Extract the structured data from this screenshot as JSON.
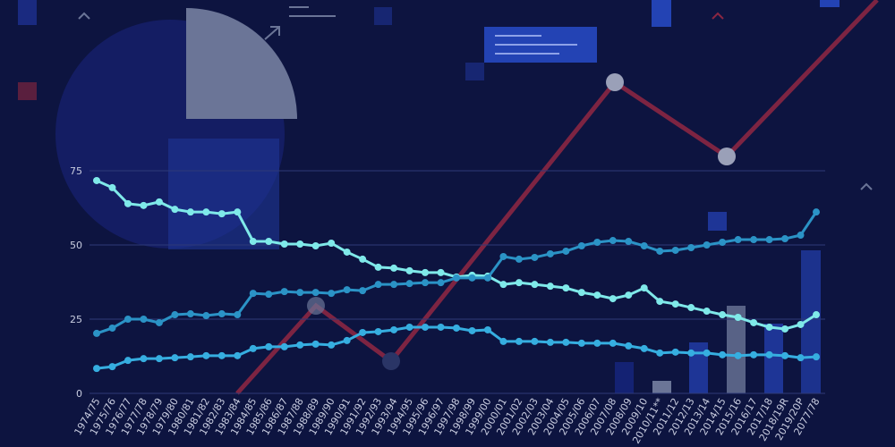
{
  "chart_data": {
    "type": "line",
    "categories": [
      "1974/75",
      "1975/76",
      "1976/77",
      "1977/78",
      "1978/79",
      "1979/80",
      "1980/81",
      "1981/82",
      "1982/83",
      "1983/84",
      "1984/85",
      "1985/86",
      "1986/87",
      "1987/88",
      "1988/89",
      "1989/90",
      "1990/91",
      "1991/92",
      "1992/93",
      "1993/94",
      "1994/95",
      "1995/96",
      "1996/97",
      "1997/98",
      "1998/99",
      "1999/00",
      "2000/01",
      "2001/02",
      "2002/03",
      "2003/04",
      "2004/05",
      "2005/06",
      "2006/07",
      "2007/08",
      "2008/09",
      "2009/10",
      "2010/11**",
      "2011/12",
      "2012/13",
      "2013/14",
      "2014/15",
      "2015/16",
      "2016/17",
      "2017/18",
      "2018/19R",
      "2019/20P",
      "2077/78"
    ],
    "series": [
      {
        "color": "#7fe9e9",
        "values": [
          71.7,
          69.3,
          63.9,
          63.3,
          64.5,
          62,
          61.1,
          61.1,
          60.5,
          61.1,
          51.2,
          51.2,
          50.3,
          50.3,
          49.7,
          50.6,
          47.6,
          45.2,
          42.5,
          42.2,
          41.3,
          40.7,
          40.7,
          39.2,
          39.8,
          39.5,
          36.7,
          37.3,
          36.7,
          36.1,
          35.5,
          34,
          33.1,
          31.9,
          33.1,
          35.5,
          31,
          30.1,
          28.9,
          27.7,
          26.5,
          25.6,
          23.8,
          22.3,
          21.7,
          23.2,
          26.5
        ]
      },
      {
        "color": "#2b93c6",
        "values": [
          20.2,
          22,
          25,
          25,
          23.8,
          26.5,
          26.8,
          26.2,
          26.8,
          26.5,
          33.7,
          33.4,
          34.3,
          34,
          34,
          33.7,
          34.9,
          34.6,
          36.7,
          36.7,
          37,
          37.3,
          37.3,
          38.9,
          38.9,
          38.9,
          46.1,
          45.2,
          45.8,
          47,
          47.9,
          49.7,
          50.9,
          51.5,
          51.2,
          49.7,
          47.9,
          48.2,
          49.1,
          50,
          50.9,
          51.8,
          51.8,
          51.8,
          52.1,
          53.3,
          61.1
        ]
      },
      {
        "color": "#36aee0",
        "values": [
          8.4,
          9,
          11.1,
          11.7,
          11.7,
          12,
          12.3,
          12.7,
          12.7,
          12.7,
          15.1,
          15.7,
          15.7,
          16.3,
          16.6,
          16.3,
          17.8,
          20.5,
          20.8,
          21.4,
          22.3,
          22.3,
          22.3,
          22,
          21.1,
          21.4,
          17.5,
          17.5,
          17.5,
          17.2,
          17.2,
          16.9,
          16.9,
          16.9,
          16,
          15.1,
          13.6,
          13.9,
          13.6,
          13.6,
          13,
          12.7,
          13,
          13,
          12.7,
          12,
          12.3
        ]
      }
    ],
    "ylim": [
      0,
      75
    ],
    "yticks": [
      0,
      25,
      50,
      75
    ],
    "grid": true
  }
}
